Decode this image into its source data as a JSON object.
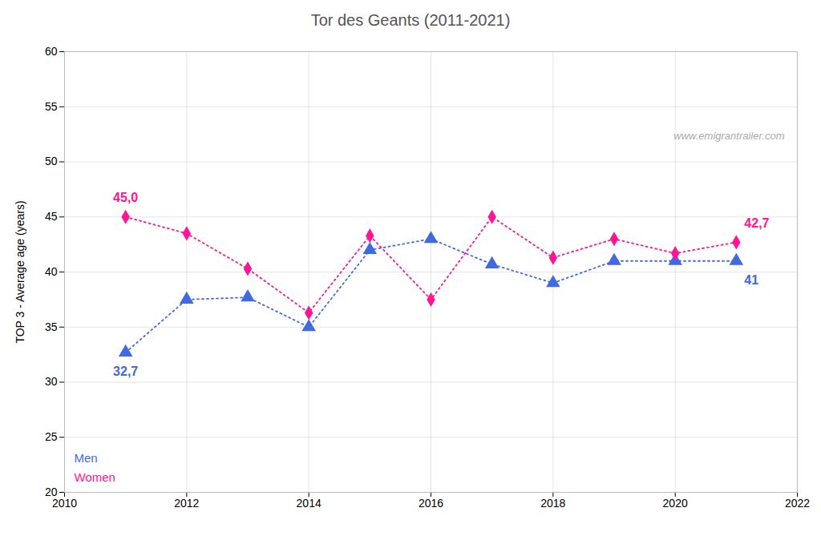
{
  "chart_data": {
    "type": "line",
    "title": "Tor des Geants (2011-2021)",
    "ylabel": "TOP 3 - Average age (years)",
    "x": [
      2011,
      2012,
      2013,
      2014,
      2015,
      2016,
      2017,
      2018,
      2019,
      2020,
      2021
    ],
    "series": [
      {
        "name": "Men",
        "color": "#4169E1",
        "marker": "triangle",
        "line_style": "dotted",
        "values": [
          32.7,
          37.5,
          37.7,
          35.0,
          42.0,
          43.0,
          40.7,
          39.0,
          41.0,
          41.0,
          41.0
        ]
      },
      {
        "name": "Women",
        "color": "#FF1493",
        "marker": "diamond",
        "line_style": "dotted",
        "values": [
          45.0,
          43.5,
          40.3,
          36.3,
          43.3,
          37.5,
          45.0,
          41.3,
          43.0,
          41.7,
          42.7
        ]
      }
    ],
    "xlim": [
      2010,
      2022
    ],
    "ylim": [
      20,
      60
    ],
    "xticks": [
      2010,
      2012,
      2014,
      2016,
      2018,
      2020,
      2022
    ],
    "yticks": [
      20,
      25,
      30,
      35,
      40,
      45,
      50,
      55,
      60
    ],
    "grid": true,
    "legend": "lower left",
    "annotations": [
      {
        "text": "32,7",
        "x": 2011,
        "y": 32.7,
        "color": "#4169E1"
      },
      {
        "text": "45,0",
        "x": 2011,
        "y": 45.0,
        "color": "#FF1493"
      },
      {
        "text": "42,7",
        "x": 2021,
        "y": 42.7,
        "color": "#FF1493"
      },
      {
        "text": "41",
        "x": 2021,
        "y": 41.0,
        "color": "#4169E1"
      },
      {
        "text": "www.emigrantrailer.com"
      }
    ]
  }
}
